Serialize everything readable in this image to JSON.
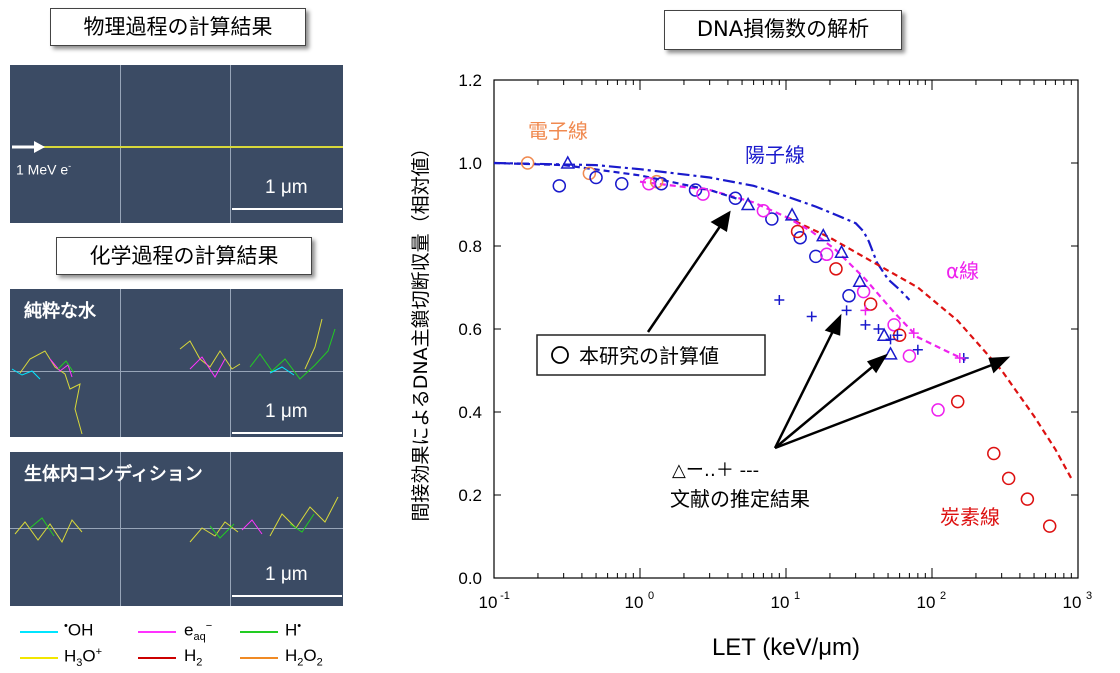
{
  "left": {
    "physics_title": "物理過程の計算結果",
    "chem_title": "化学過程の計算結果",
    "beam_label": "1 MeV e",
    "beam_sup": "-",
    "scale_label": "1 μm",
    "pure_water": "純粋な水",
    "in_vivo": "生体内コンディション",
    "legend": [
      {
        "sym": "•OH",
        "color": "#00e5ff"
      },
      {
        "sym": "eaq−",
        "color": "#ff33ff"
      },
      {
        "sym": "H•",
        "color": "#22cc22"
      },
      {
        "sym": "H3O+",
        "color": "#f2e600"
      },
      {
        "sym": "H2",
        "color": "#cc0000"
      },
      {
        "sym": "H2O2",
        "color": "#f08a24"
      }
    ]
  },
  "chart_data": {
    "type": "scatter",
    "title": "DNA損傷数の解析",
    "xlabel": "LET (keV/μm)",
    "ylabel": "間接効果によるDNA主鎖切断収量（相対値）",
    "xscale": "log",
    "xlim": [
      0.1,
      1000
    ],
    "ylim": [
      0.0,
      1.2
    ],
    "x_ticks": [
      "10",
      "10",
      "10",
      "10",
      "10"
    ],
    "x_tick_exps": [
      "-1",
      "0",
      "1",
      "2",
      "3"
    ],
    "y_ticks": [
      "0.0",
      "0.2",
      "0.4",
      "0.6",
      "0.8",
      "1.0",
      "1.2"
    ],
    "annotations": {
      "electron": "電子線",
      "proton": "陽子線",
      "alpha": "α線",
      "carbon": "炭素線",
      "this_study": "本研究の計算値",
      "literature_symbols": "△ー‥＋ ‐‐‐",
      "literature": "文献の推定結果"
    },
    "colors": {
      "electron": "#f08a50",
      "proton": "#1a1acc",
      "alpha": "#ee22ee",
      "carbon": "#dd1111"
    },
    "series": [
      {
        "name": "電子線 計算値",
        "marker": "circle",
        "color": "#f08a50",
        "x": [
          0.17,
          0.45,
          1.3
        ],
        "y": [
          1.0,
          0.975,
          0.955
        ]
      },
      {
        "name": "陽子線 計算値",
        "marker": "circle",
        "color": "#1a1acc",
        "x": [
          0.28,
          0.5,
          0.75,
          1.4,
          2.4,
          4.5,
          8.0,
          12.5,
          16.0,
          27.0
        ],
        "y": [
          0.945,
          0.965,
          0.95,
          0.95,
          0.935,
          0.915,
          0.865,
          0.82,
          0.775,
          0.68
        ]
      },
      {
        "name": "α線 計算値",
        "marker": "circle",
        "color": "#ee22ee",
        "x": [
          1.15,
          2.7,
          7.0,
          19.0,
          34.0,
          55.0,
          70.0,
          110.0
        ],
        "y": [
          0.95,
          0.925,
          0.885,
          0.78,
          0.69,
          0.61,
          0.535,
          0.405
        ]
      },
      {
        "name": "炭素線 計算値",
        "marker": "circle",
        "color": "#dd1111",
        "x": [
          12.0,
          22.0,
          38.0,
          60.0,
          150.0,
          265.0,
          335.0,
          450.0,
          640.0
        ],
        "y": [
          0.835,
          0.745,
          0.66,
          0.585,
          0.425,
          0.3,
          0.24,
          0.19,
          0.125
        ]
      },
      {
        "name": "陽子線 文献",
        "marker": "triangle",
        "color": "#1a1acc",
        "x": [
          0.32,
          5.5,
          11.0,
          18.0,
          24.0,
          32.0,
          47.0,
          52.0
        ],
        "y": [
          1.0,
          0.9,
          0.875,
          0.825,
          0.785,
          0.715,
          0.585,
          0.54
        ]
      },
      {
        "name": "α線 文献",
        "marker": "plus",
        "color": "#1a1acc",
        "x": [
          9.0,
          15.0,
          26.0,
          35.0,
          43.0,
          52.0,
          58.0,
          80.0,
          165.0
        ],
        "y": [
          0.67,
          0.63,
          0.645,
          0.61,
          0.6,
          0.575,
          0.585,
          0.55,
          0.53
        ]
      },
      {
        "name": "α線 文献(マゼンタ)",
        "marker": "plus",
        "color": "#ee22ee",
        "x": [
          35.0,
          75.0,
          155.0
        ],
        "y": [
          0.645,
          0.59,
          0.53
        ]
      }
    ],
    "lines": [
      {
        "name": "陽子線 文献",
        "style": "dashdot",
        "color": "#1a1acc",
        "x": [
          0.1,
          0.5,
          1.0,
          3.0,
          6.0,
          10.0,
          16.0,
          22.0,
          30.0,
          34.0,
          37.0,
          42.0,
          50.0,
          60.0,
          70.0
        ],
        "y": [
          1.0,
          0.995,
          0.985,
          0.965,
          0.945,
          0.92,
          0.895,
          0.875,
          0.855,
          0.835,
          0.81,
          0.76,
          0.72,
          0.695,
          0.67
        ]
      },
      {
        "name": "炭素線 文献",
        "style": "dashed",
        "color": "#dd1111",
        "x": [
          10.0,
          20.0,
          40.0,
          80.0,
          150.0,
          300.0,
          500.0,
          700.0,
          900.0
        ],
        "y": [
          0.87,
          0.82,
          0.76,
          0.7,
          0.62,
          0.5,
          0.39,
          0.31,
          0.24
        ]
      },
      {
        "name": "α線 文献",
        "style": "dashed",
        "color": "#ee22ee",
        "x": [
          1.0,
          3.0,
          6.0,
          10.0,
          15.0,
          22.0,
          35.0,
          55.0,
          80.0,
          120.0,
          170.0
        ],
        "y": [
          0.955,
          0.935,
          0.905,
          0.87,
          0.835,
          0.79,
          0.72,
          0.64,
          0.58,
          0.55,
          0.525
        ]
      },
      {
        "name": "電子線 文献",
        "style": "dashed",
        "color": "#1a1acc",
        "x": [
          0.1,
          0.3,
          1.0,
          3.0,
          5.0
        ],
        "y": [
          1.0,
          0.995,
          0.97,
          0.935,
          0.91
        ]
      }
    ]
  }
}
